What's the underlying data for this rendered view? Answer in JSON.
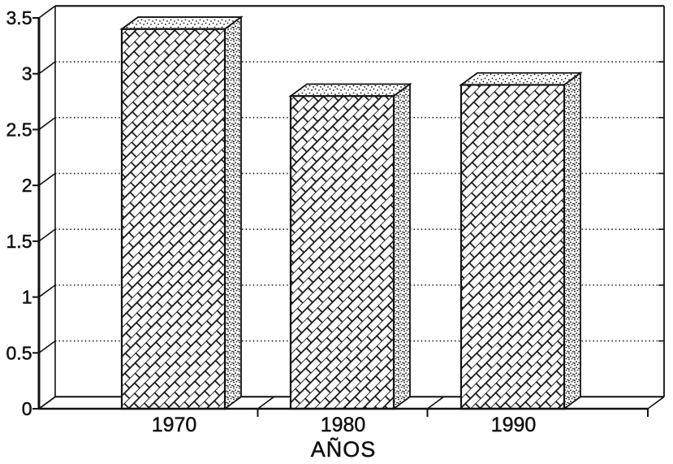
{
  "figure": {
    "kind": "scanned monochrome 3D bar chart",
    "background": "#ffffff",
    "ink": "#111111"
  },
  "chart_data": {
    "type": "bar",
    "effect": "3d-perspective-box",
    "fill_style": "diagonal brick hatch on bar fronts, stipple dots on top and side faces",
    "categories": [
      "1970",
      "1980",
      "1990"
    ],
    "values": [
      3.4,
      2.8,
      2.9
    ],
    "title": "",
    "xlabel": "AÑOS",
    "ylabel": "",
    "ylim": [
      0,
      3.5
    ],
    "yticks": [
      0,
      0.5,
      1,
      1.5,
      2,
      2.5,
      3,
      3.5
    ],
    "ytick_labels": [
      "0",
      "0.5",
      "1",
      "1.5",
      "2",
      "2.5",
      "3",
      "3.5"
    ],
    "grid": "horizontal dotted",
    "legend": "none"
  }
}
